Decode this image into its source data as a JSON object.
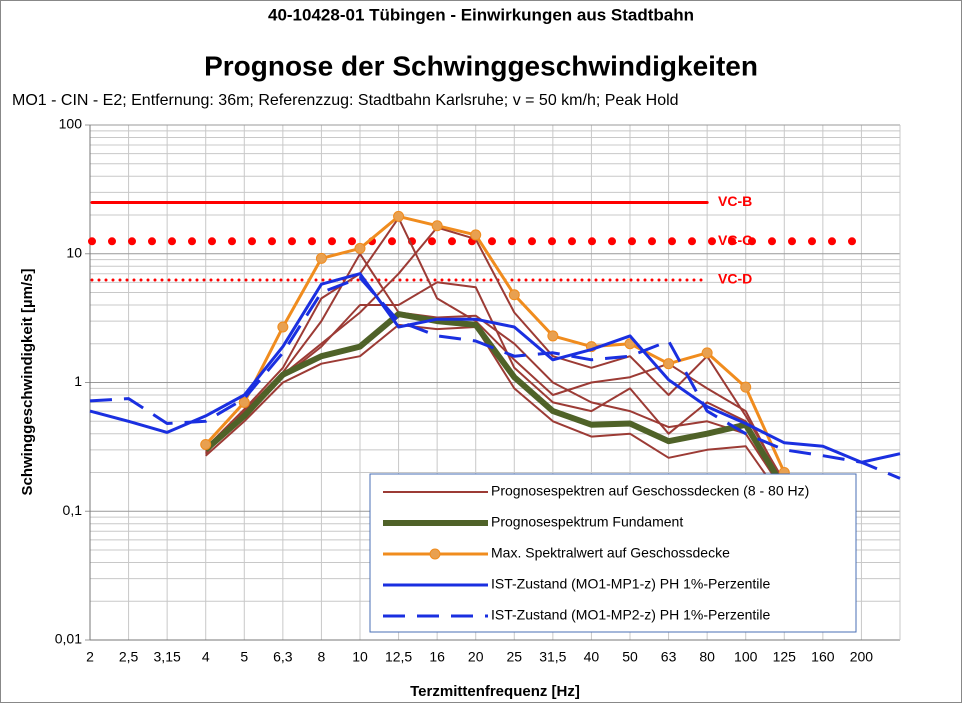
{
  "chart_data": {
    "type": "line",
    "title": "40-10428-01 Tübingen - Einwirkungen aus Stadtbahn",
    "subtitle": "Prognose der Schwinggeschwindigkeiten",
    "annotation": "MO1 - CIN - E2; Entfernung: 36m; Referenzzug: Stadtbahn Karlsruhe; v = 50 km/h; Peak Hold",
    "x_label": "Terzmittenfrequenz [Hz]",
    "y_label": "Schwinggeschwindigkeit [µm/s]",
    "categories": [
      "2",
      "2,5",
      "3,15",
      "4",
      "5",
      "6,3",
      "8",
      "10",
      "12,5",
      "16",
      "20",
      "25",
      "31,5",
      "40",
      "50",
      "63",
      "80",
      "100",
      "125",
      "160",
      "200",
      null
    ],
    "ylim": [
      0.01,
      100
    ],
    "yticks": [
      {
        "value": 0.01,
        "label": "0,01"
      },
      {
        "value": 0.1,
        "label": "0,1"
      },
      1,
      10,
      100
    ],
    "log_y": true,
    "grid": true,
    "reference_lines": [
      {
        "label": "VC-B",
        "value": 25,
        "color": "#ff0000",
        "style": "solid"
      },
      {
        "label": "VC-C",
        "value": 12.5,
        "color": "#ff0000",
        "style": "dots"
      },
      {
        "label": "VC-D",
        "value": 6.25,
        "color": "#ff0000",
        "style": "fine-dots"
      }
    ],
    "series": [
      {
        "name": "Prognosespektren auf Geschossdecken (8 - 80 Hz)",
        "color": "#9c3b35",
        "values": [
          null,
          null,
          null,
          0.27,
          0.5,
          1.0,
          1.4,
          1.6,
          2.8,
          2.6,
          2.7,
          0.9,
          0.5,
          0.38,
          0.4,
          0.26,
          0.3,
          0.32,
          0.12,
          null,
          null,
          null
        ]
      },
      {
        "color": "#9c3b35",
        "values": [
          null,
          null,
          null,
          0.3,
          0.55,
          1.1,
          1.9,
          4.0,
          4.0,
          6.0,
          5.5,
          1.3,
          0.7,
          0.6,
          0.9,
          0.4,
          0.7,
          0.5,
          0.15,
          null,
          null,
          null
        ]
      },
      {
        "color": "#9c3b35",
        "values": [
          null,
          null,
          null,
          0.28,
          0.6,
          1.2,
          3.0,
          10.0,
          3.5,
          3.2,
          3.3,
          2.0,
          1.0,
          0.7,
          0.6,
          0.45,
          0.5,
          0.4,
          0.14,
          null,
          null,
          null
        ]
      },
      {
        "color": "#9c3b35",
        "values": [
          null,
          null,
          null,
          0.31,
          0.62,
          1.3,
          4.5,
          7.0,
          19.0,
          4.5,
          3.0,
          1.5,
          0.8,
          1.0,
          1.1,
          1.4,
          0.9,
          0.6,
          0.16,
          null,
          null,
          null
        ]
      },
      {
        "color": "#9c3b35",
        "values": [
          null,
          null,
          null,
          0.29,
          0.58,
          1.15,
          2.0,
          3.5,
          7.0,
          16.0,
          13.0,
          3.5,
          1.6,
          1.3,
          1.6,
          0.8,
          1.6,
          0.55,
          0.17,
          null,
          null,
          null
        ]
      },
      {
        "name": "Prognosespektrum Fundament",
        "color": "#4f6228",
        "width": 6,
        "values": [
          null,
          null,
          null,
          0.3,
          0.55,
          1.15,
          1.6,
          1.9,
          3.4,
          3.0,
          2.8,
          1.1,
          0.6,
          0.47,
          0.48,
          0.35,
          0.4,
          0.47,
          0.15,
          null,
          null,
          null
        ]
      },
      {
        "name": "Max. Spektralwert auf Geschossdecke",
        "color": "#f08c1e",
        "marker_color": "#e8a050",
        "markers": true,
        "values": [
          null,
          null,
          null,
          0.33,
          0.7,
          2.7,
          9.2,
          11,
          19.5,
          16.5,
          14,
          4.8,
          2.3,
          1.9,
          2.0,
          1.4,
          1.7,
          0.92,
          0.2,
          null,
          null,
          null
        ]
      },
      {
        "name": "IST-Zustand (MO1-MP1-z)  PH 1%-Perzentile",
        "color": "#1a2fe0",
        "values": [
          0.6,
          0.5,
          0.41,
          0.55,
          0.8,
          1.9,
          5.8,
          7.0,
          2.7,
          3.1,
          3.1,
          2.7,
          1.5,
          1.8,
          2.3,
          1.05,
          0.65,
          0.48,
          0.34,
          0.32,
          0.24,
          0.28
        ]
      },
      {
        "name": "IST-Zustand (MO1-MP2-z)  PH 1%-Perzentile",
        "color": "#1a2fe0",
        "dash": true,
        "values": [
          0.72,
          0.75,
          0.48,
          0.5,
          0.75,
          1.7,
          5.0,
          6.5,
          3.0,
          2.3,
          2.1,
          1.6,
          1.7,
          1.5,
          1.6,
          2.1,
          0.6,
          0.4,
          0.3,
          0.27,
          0.24,
          0.18
        ]
      }
    ]
  }
}
